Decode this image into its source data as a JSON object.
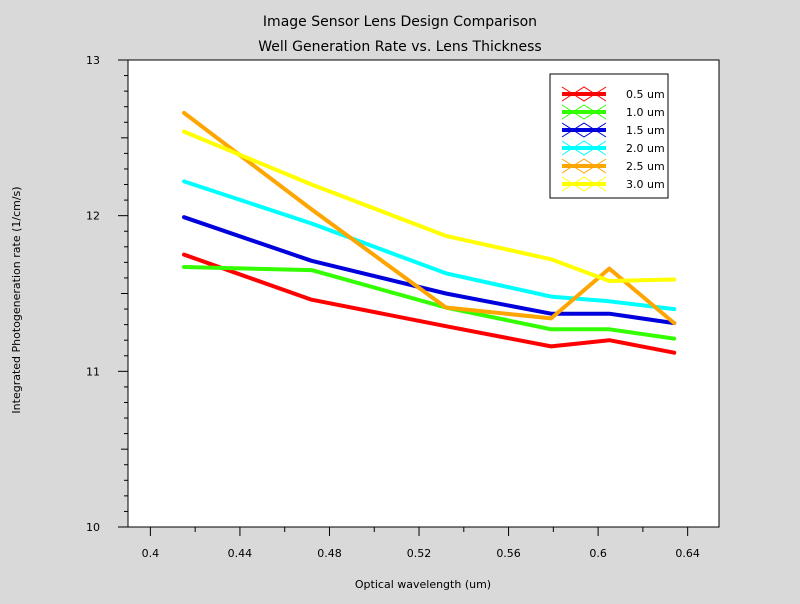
{
  "chart_data": {
    "type": "line",
    "title": "Image Sensor Lens Design Comparison",
    "subtitle": "Well Generation Rate vs. Lens Thickness",
    "xlabel": "Optical wavelength (um)",
    "ylabel": "Integrated Photogeneration rate (1/cm/s)",
    "xlim": [
      0.39,
      0.654
    ],
    "ylim": [
      10,
      13
    ],
    "x_ticks": [
      0.4,
      0.44,
      0.48,
      0.52,
      0.56,
      0.6,
      0.64
    ],
    "x_tick_labels": [
      "0.4",
      "0.44",
      "0.48",
      "0.52",
      "0.56",
      "0.6",
      "0.64"
    ],
    "y_ticks": [
      10,
      11,
      12,
      13
    ],
    "y_tick_labels": [
      "10",
      "11",
      "12",
      "13"
    ],
    "y_minor_step": 0.1,
    "grid": false,
    "legend_position": "top-right",
    "x": [
      0.415,
      0.472,
      0.532,
      0.579,
      0.605,
      0.634
    ],
    "series": [
      {
        "name": "0.5 um",
        "color": "#ff0000",
        "values": [
          11.75,
          11.46,
          11.29,
          11.16,
          11.2,
          11.12
        ]
      },
      {
        "name": "1.0 um",
        "color": "#33ff00",
        "values": [
          11.67,
          11.65,
          11.41,
          11.27,
          11.27,
          11.21
        ]
      },
      {
        "name": "1.5 um",
        "color": "#0000dd",
        "values": [
          11.99,
          11.71,
          11.5,
          11.37,
          11.37,
          11.31
        ]
      },
      {
        "name": "2.0 um",
        "color": "#00ffff",
        "values": [
          12.22,
          11.95,
          11.63,
          11.48,
          11.45,
          11.4
        ]
      },
      {
        "name": "2.5 um",
        "color": "#ffa500",
        "values": [
          12.66,
          12.04,
          11.41,
          11.34,
          11.66,
          11.31
        ]
      },
      {
        "name": "3.0 um",
        "color": "#ffff00",
        "values": [
          12.54,
          12.2,
          11.87,
          11.72,
          11.58,
          11.59
        ]
      }
    ]
  }
}
